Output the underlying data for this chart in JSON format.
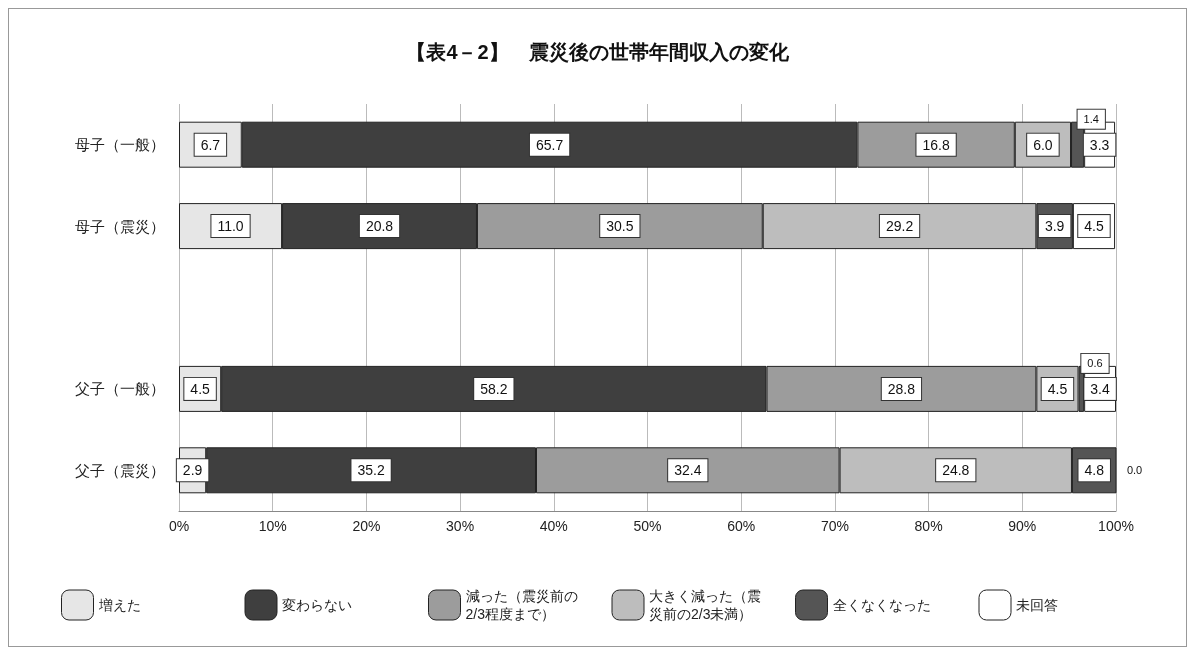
{
  "chart_data": {
    "type": "bar",
    "orientation": "horizontal",
    "stacked": true,
    "title": "【表4－2】　震災後の世帯年間収入の変化",
    "categories": [
      "母子（一般）",
      "母子（震災）",
      null,
      "父子（一般）",
      "父子（震災）"
    ],
    "series": [
      {
        "name": "増えた",
        "color": "#e6e6e6",
        "values": [
          6.7,
          11.0,
          null,
          4.5,
          2.9
        ],
        "value_labels": [
          "6.7",
          "11.0",
          null,
          "4.5",
          "2.9"
        ]
      },
      {
        "name": "変わらない",
        "color": "#3f3f3f",
        "values": [
          65.7,
          20.8,
          null,
          58.2,
          35.2
        ],
        "value_labels": [
          "65.7",
          "20.8",
          null,
          "58.2",
          "35.2"
        ]
      },
      {
        "name": "減った（震災前の2/3程度まで）",
        "color": "#9c9c9c",
        "values": [
          16.8,
          30.5,
          null,
          28.8,
          32.4
        ],
        "value_labels": [
          "16.8",
          "30.5",
          null,
          "28.8",
          "32.4"
        ]
      },
      {
        "name": "大きく減った（震災前の2/3未満）",
        "color": "#bdbdbd",
        "values": [
          6.0,
          29.2,
          null,
          4.5,
          24.8
        ],
        "value_labels": [
          "6.0",
          "29.2",
          null,
          "4.5",
          "24.8"
        ]
      },
      {
        "name": "全くなくなった",
        "color": "#555555",
        "values": [
          1.4,
          3.9,
          null,
          0.6,
          4.8
        ],
        "value_labels": [
          "1.4",
          "3.9",
          null,
          "0.6",
          "4.8"
        ]
      },
      {
        "name": "未回答",
        "color": "#ffffff",
        "values": [
          3.3,
          4.5,
          null,
          3.4,
          0.0
        ],
        "value_labels": [
          "3.3",
          "4.5",
          null,
          "3.4",
          "0.0"
        ]
      }
    ],
    "xlim": [
      0,
      100
    ],
    "xticks": [
      {
        "value": 0,
        "label": "0%"
      },
      {
        "value": 10,
        "label": "10%"
      },
      {
        "value": 20,
        "label": "20%"
      },
      {
        "value": 30,
        "label": "30%"
      },
      {
        "value": 40,
        "label": "40%"
      },
      {
        "value": 50,
        "label": "50%"
      },
      {
        "value": 60,
        "label": "60%"
      },
      {
        "value": 70,
        "label": "70%"
      },
      {
        "value": 80,
        "label": "80%"
      },
      {
        "value": 90,
        "label": "90%"
      },
      {
        "value": 100,
        "label": "100%"
      }
    ],
    "grid": "x",
    "legend": "bottom"
  }
}
